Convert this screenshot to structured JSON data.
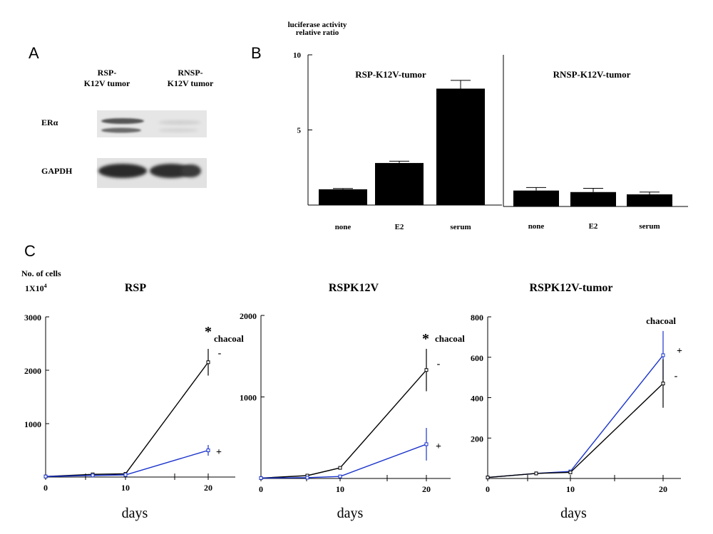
{
  "panels": {
    "a": "A",
    "b": "B",
    "c": "C"
  },
  "blot": {
    "col1": [
      "RSP-",
      "K12V tumor"
    ],
    "col2": [
      "RNSP-",
      "K12V tumor"
    ],
    "row1": "ERα",
    "row2": "GAPDH"
  },
  "panel_b_ylabel": [
    "luciferase activity",
    "relative ratio"
  ],
  "panel_c_ylabel": [
    "No. of cells",
    "1X10",
    "4"
  ],
  "chart_data": [
    {
      "type": "bar",
      "title": "RSP-K12V-tumor",
      "categories": [
        "none",
        "E2",
        "serum"
      ],
      "values": [
        1.05,
        2.8,
        7.75
      ],
      "errors": [
        0.05,
        0.12,
        0.55
      ],
      "ylim": [
        0,
        10
      ],
      "yticks": [
        "10",
        "5"
      ],
      "bar_color": "#000000"
    },
    {
      "type": "bar",
      "title": "RNSP-K12V-tumor",
      "categories": [
        "none",
        "E2",
        "serum"
      ],
      "values": [
        1.05,
        0.95,
        0.8
      ],
      "errors": [
        0.2,
        0.25,
        0.15
      ],
      "ylim": [
        0,
        10
      ],
      "bar_color": "#000000"
    },
    {
      "type": "line",
      "title": "RSP",
      "xlabel": "days",
      "x": [
        0,
        6,
        10,
        20
      ],
      "xticks": [
        "0",
        "10",
        "20"
      ],
      "ylim": [
        0,
        3000
      ],
      "yticks": [
        "3000",
        "2000",
        "1000"
      ],
      "legend_title": "chacoal",
      "significance": "*",
      "series": [
        {
          "name": "-",
          "color": "#000000",
          "values": [
            10,
            50,
            60,
            2150
          ],
          "error_last": 250
        },
        {
          "name": "+",
          "color": "#1a33cc",
          "values": [
            10,
            30,
            40,
            500
          ],
          "error_last": 100
        }
      ]
    },
    {
      "type": "line",
      "title": "RSPK12V",
      "xlabel": "days",
      "x": [
        0,
        6,
        10,
        20
      ],
      "xticks": [
        "0",
        "10",
        "20"
      ],
      "ylim": [
        0,
        2000
      ],
      "yticks": [
        "2000",
        "1000"
      ],
      "legend_title": "chacoal",
      "significance": "*",
      "series": [
        {
          "name": "-",
          "color": "#000000",
          "values": [
            5,
            35,
            130,
            1330
          ],
          "error_last": 260
        },
        {
          "name": "+",
          "color": "#1a33cc",
          "values": [
            5,
            10,
            25,
            420
          ],
          "error_last": 200
        }
      ]
    },
    {
      "type": "line",
      "title": "RSPK12V-tumor",
      "xlabel": "days",
      "x": [
        0,
        6,
        10,
        20
      ],
      "xticks": [
        "0",
        "10",
        "20"
      ],
      "ylim": [
        0,
        800
      ],
      "yticks": [
        "800",
        "600",
        "400",
        "200"
      ],
      "legend_title": "chacoal",
      "series": [
        {
          "name": "+",
          "color": "#1a33cc",
          "values": [
            5,
            25,
            35,
            610
          ],
          "error_last": 120
        },
        {
          "name": "-",
          "color": "#000000",
          "values": [
            5,
            25,
            30,
            470
          ],
          "error_last": 120
        }
      ]
    }
  ]
}
